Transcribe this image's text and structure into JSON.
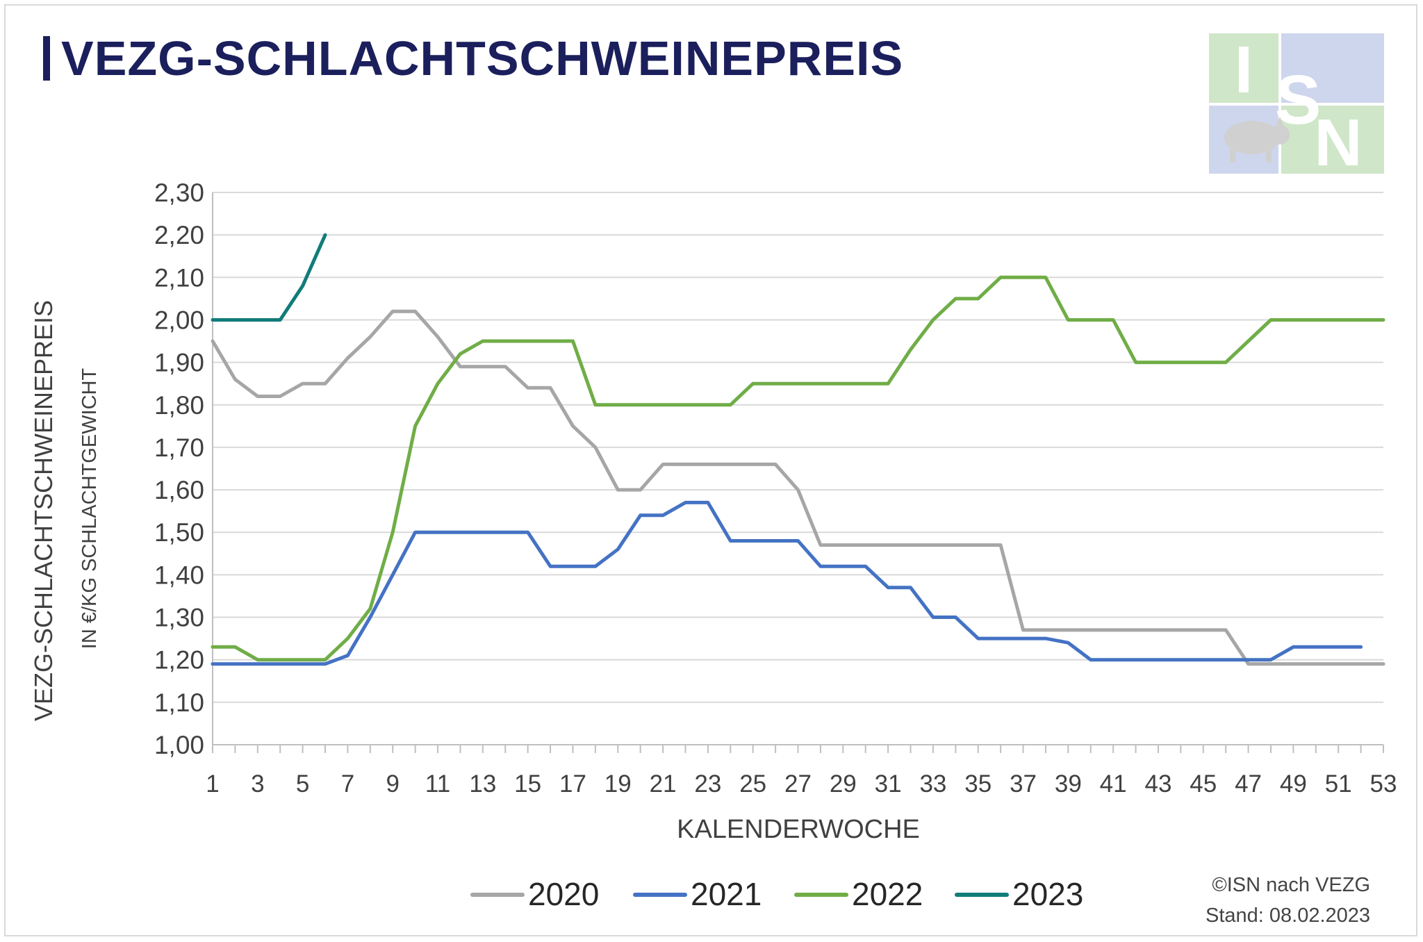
{
  "header": {
    "title": "VEZG-SCHLACHTSCHWEINEPREIS"
  },
  "logo": {
    "letters": [
      "I",
      "S",
      "N"
    ],
    "colors": [
      "#cfe6c9",
      "#cdd6ec"
    ]
  },
  "credit": {
    "line1": "©ISN nach VEZG",
    "line2": "Stand: 08.02.2023"
  },
  "chart_data": {
    "type": "line",
    "title": "VEZG-SCHLACHTSCHWEINEPREIS",
    "ylabel": "VEZG-SCHLACHTSCHWEINEPREIS",
    "ylabel_sub": "IN €/KG SCHLACHTGEWICHT",
    "xlabel": "KALENDERWOCHE",
    "ylim": [
      1.0,
      2.3
    ],
    "yticks": [
      "1,00",
      "1,10",
      "1,20",
      "1,30",
      "1,40",
      "1,50",
      "1,60",
      "1,70",
      "1,80",
      "1,90",
      "2,00",
      "2,10",
      "2,20",
      "2,30"
    ],
    "xticks": [
      "1",
      "3",
      "5",
      "7",
      "9",
      "11",
      "13",
      "15",
      "17",
      "19",
      "21",
      "23",
      "25",
      "27",
      "29",
      "31",
      "33",
      "35",
      "37",
      "39",
      "41",
      "43",
      "45",
      "47",
      "49",
      "51",
      "53"
    ],
    "grid": true,
    "legend_position": "bottom",
    "series": [
      {
        "name": "2020",
        "color": "#a6a6a6",
        "values": [
          1.95,
          1.86,
          1.82,
          1.82,
          1.85,
          1.85,
          1.91,
          1.96,
          2.02,
          2.02,
          1.96,
          1.89,
          1.89,
          1.89,
          1.84,
          1.84,
          1.75,
          1.7,
          1.6,
          1.6,
          1.66,
          1.66,
          1.66,
          1.66,
          1.66,
          1.66,
          1.6,
          1.47,
          1.47,
          1.47,
          1.47,
          1.47,
          1.47,
          1.47,
          1.47,
          1.47,
          1.27,
          1.27,
          1.27,
          1.27,
          1.27,
          1.27,
          1.27,
          1.27,
          1.27,
          1.27,
          1.19,
          1.19,
          1.19,
          1.19,
          1.19,
          1.19,
          1.19
        ]
      },
      {
        "name": "2021",
        "color": "#4472c4",
        "values": [
          1.19,
          1.19,
          1.19,
          1.19,
          1.19,
          1.19,
          1.21,
          1.3,
          1.4,
          1.5,
          1.5,
          1.5,
          1.5,
          1.5,
          1.5,
          1.42,
          1.42,
          1.42,
          1.46,
          1.54,
          1.54,
          1.57,
          1.57,
          1.48,
          1.48,
          1.48,
          1.48,
          1.42,
          1.42,
          1.42,
          1.37,
          1.37,
          1.3,
          1.3,
          1.25,
          1.25,
          1.25,
          1.25,
          1.24,
          1.2,
          1.2,
          1.2,
          1.2,
          1.2,
          1.2,
          1.2,
          1.2,
          1.2,
          1.23,
          1.23,
          1.23,
          1.23
        ]
      },
      {
        "name": "2022",
        "color": "#70ad47",
        "values": [
          1.23,
          1.23,
          1.2,
          1.2,
          1.2,
          1.2,
          1.25,
          1.32,
          1.5,
          1.75,
          1.85,
          1.92,
          1.95,
          1.95,
          1.95,
          1.95,
          1.95,
          1.8,
          1.8,
          1.8,
          1.8,
          1.8,
          1.8,
          1.8,
          1.85,
          1.85,
          1.85,
          1.85,
          1.85,
          1.85,
          1.85,
          1.93,
          2.0,
          2.05,
          2.05,
          2.1,
          2.1,
          2.1,
          2.0,
          2.0,
          2.0,
          1.9,
          1.9,
          1.9,
          1.9,
          1.9,
          1.95,
          2.0,
          2.0,
          2.0,
          2.0,
          2.0,
          2.0
        ]
      },
      {
        "name": "2023",
        "color": "#127c7a",
        "values": [
          2.0,
          2.0,
          2.0,
          2.0,
          2.08,
          2.2
        ]
      }
    ]
  }
}
